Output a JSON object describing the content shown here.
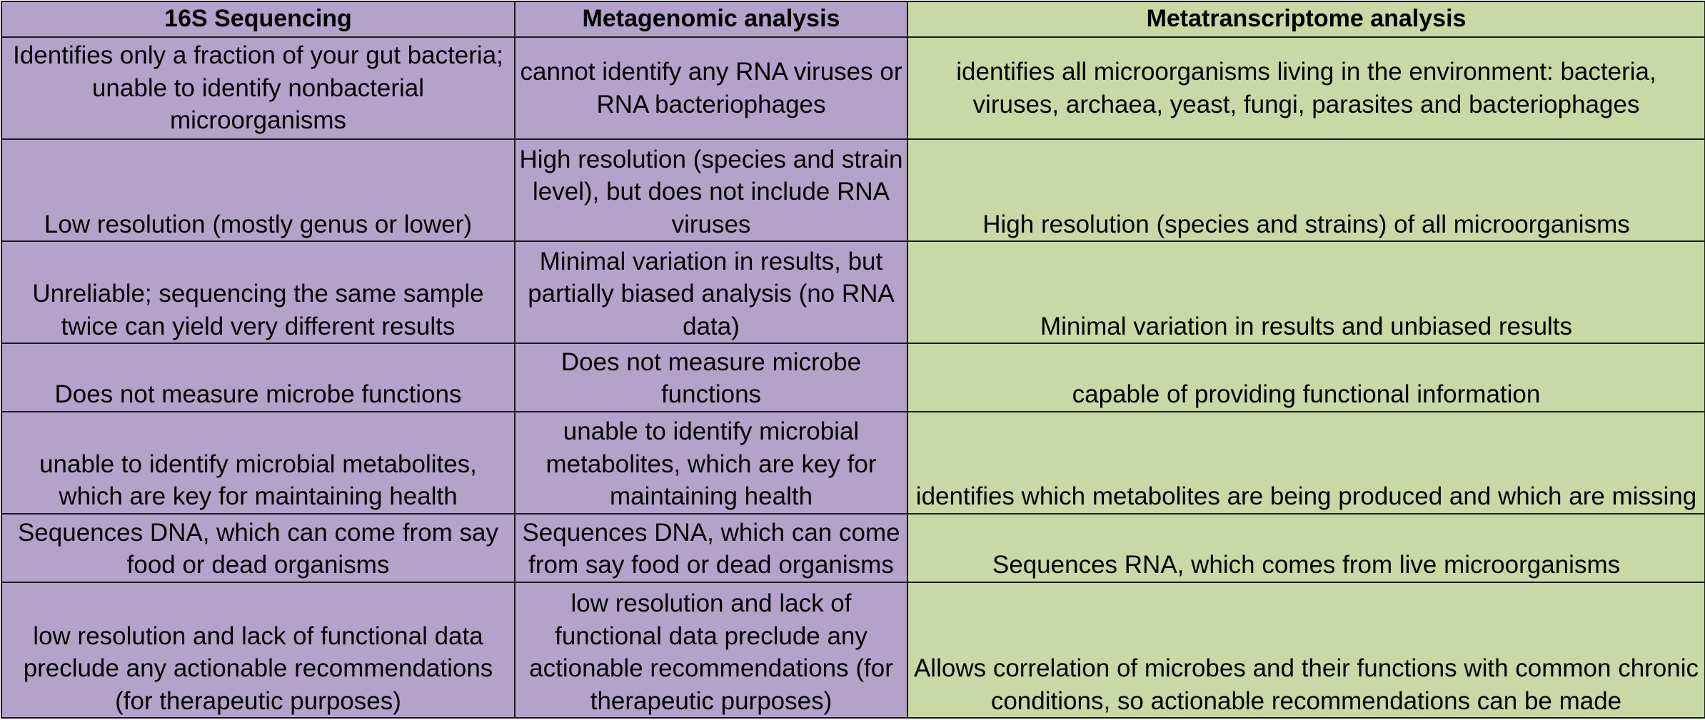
{
  "headers": [
    "16S Sequencing",
    "Metagenomic analysis",
    "Metatranscriptome analysis"
  ],
  "rows": [
    [
      "Identifies only a fraction of your gut bacteria; unable to identify nonbacterial microorganisms",
      "cannot identify any RNA viruses or RNA bacteriophages",
      "identifies all microorganisms living in the environment: bacteria, viruses, archaea, yeast, fungi, parasites and bacteriophages"
    ],
    [
      "Low resolution (mostly genus or lower)",
      "High resolution (species and strain level), but does not include RNA viruses",
      "High resolution (species and strains) of all microorganisms"
    ],
    [
      "Unreliable; sequencing the same sample twice can yield very different results",
      "Minimal variation in results, but partially biased analysis (no RNA data)",
      "Minimal variation in results and unbiased results"
    ],
    [
      "Does not measure microbe functions",
      "Does not measure microbe functions",
      "capable of providing functional information"
    ],
    [
      "unable to identify microbial metabolites, which are key for maintaining health",
      "unable to identify microbial metabolites, which are key for maintaining health",
      "identifies which metabolites are being produced and which are missing"
    ],
    [
      "Sequences DNA, which can come from say food or dead organisms",
      "Sequences DNA, which can come from say food or dead organisms",
      "Sequences RNA, which comes from live microorganisms"
    ],
    [
      "low resolution and lack of functional data preclude any actionable recommendations (for therapeutic purposes)",
      "low resolution and lack of functional data preclude any actionable recommendations (for therapeutic purposes)",
      "Allows correlation of microbes and their functions with common chronic conditions, so actionable recommendations can be made"
    ]
  ],
  "colors": {
    "purple_fill": "#b3a3cb",
    "green_fill": "#c9d8a5",
    "border": "#1a1a1a"
  }
}
